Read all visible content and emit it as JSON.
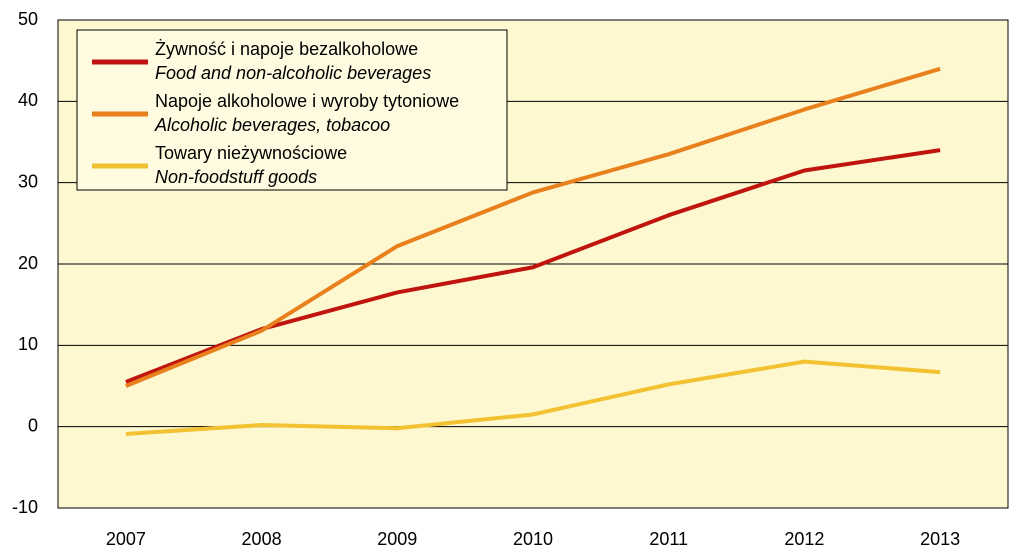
{
  "chart_data": {
    "type": "line",
    "categories": [
      "2007",
      "2008",
      "2009",
      "2010",
      "2011",
      "2012",
      "2013"
    ],
    "series": [
      {
        "name": "Żywność i napoje bezalkoholowe",
        "name_en": "Food and non-alcoholic beverages",
        "color": "#c0150f",
        "values": [
          5.5,
          12,
          16.5,
          19.6,
          26,
          31.5,
          34
        ]
      },
      {
        "name": "Napoje alkoholowe i wyroby tytoniowe",
        "name_en": "Alcoholic beverages, tobacoo",
        "color": "#e8801e",
        "values": [
          5,
          11.8,
          22.2,
          28.8,
          33.5,
          39,
          44
        ]
      },
      {
        "name": "Towary nieżywnościowe",
        "name_en": "Non-foodstuff goods",
        "color": "#f2c232",
        "values": [
          -0.9,
          0.2,
          -0.2,
          1.5,
          5.2,
          8,
          6.7
        ]
      }
    ],
    "ylim": [
      -10,
      50
    ],
    "yticks": [
      -10,
      0,
      10,
      20,
      30,
      40,
      50
    ],
    "grid": true
  }
}
